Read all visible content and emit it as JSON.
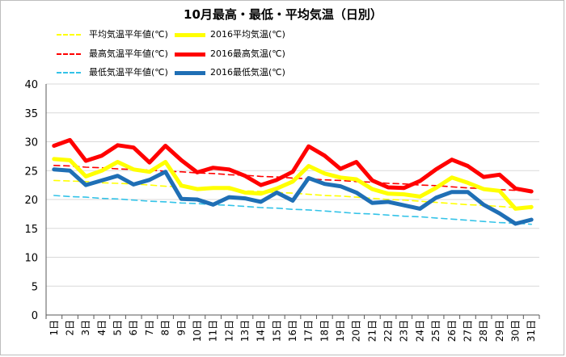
{
  "chart_data": {
    "type": "line",
    "title": "10月最高・最低・平均気温（日別）",
    "categories": [
      "1日",
      "2日",
      "3日",
      "4日",
      "5日",
      "6日",
      "7日",
      "8日",
      "9日",
      "10日",
      "11日",
      "12日",
      "13日",
      "14日",
      "15日",
      "16日",
      "17日",
      "18日",
      "19日",
      "20日",
      "21日",
      "22日",
      "23日",
      "24日",
      "25日",
      "26日",
      "27日",
      "28日",
      "29日",
      "30日",
      "31日"
    ],
    "ylim": [
      0,
      40
    ],
    "yticks": [
      0,
      5,
      10,
      15,
      20,
      25,
      30,
      35,
      40
    ],
    "grid": true,
    "legend_position": "top",
    "series": [
      {
        "name": "平均気温平年値(℃)",
        "color": "#ffff00",
        "style": "dashed",
        "values": [
          23.3,
          23.2,
          23.1,
          22.9,
          22.8,
          22.7,
          22.5,
          22.3,
          22.2,
          22.0,
          21.9,
          21.7,
          21.5,
          21.4,
          21.2,
          21.1,
          20.9,
          20.7,
          20.6,
          20.4,
          20.2,
          20.0,
          19.9,
          19.7,
          19.5,
          19.3,
          19.1,
          19.0,
          18.8,
          18.6,
          18.4
        ]
      },
      {
        "name": "2016平均気温(℃)",
        "color": "#ffff00",
        "style": "solid",
        "values": [
          27.0,
          26.8,
          24.0,
          25.0,
          26.5,
          25.2,
          24.8,
          26.5,
          22.4,
          21.8,
          22.0,
          22.0,
          21.2,
          21.0,
          21.9,
          23.1,
          25.8,
          24.5,
          23.8,
          23.5,
          21.8,
          21.0,
          20.9,
          20.5,
          22.0,
          23.8,
          22.9,
          21.8,
          21.5,
          18.4,
          18.7
        ]
      },
      {
        "name": "最高気温平年値(℃)",
        "color": "#ff0000",
        "style": "dashed",
        "values": [
          25.9,
          25.8,
          25.6,
          25.5,
          25.3,
          25.2,
          25.1,
          24.9,
          24.8,
          24.6,
          24.5,
          24.3,
          24.2,
          24.0,
          23.9,
          23.7,
          23.6,
          23.4,
          23.3,
          23.1,
          23.0,
          22.8,
          22.7,
          22.5,
          22.4,
          22.2,
          22.0,
          21.9,
          21.7,
          21.6,
          21.4
        ]
      },
      {
        "name": "2016最高気温(℃)",
        "color": "#ff0000",
        "style": "solid",
        "values": [
          29.3,
          30.3,
          26.7,
          27.6,
          29.4,
          29.0,
          26.4,
          29.3,
          26.8,
          24.7,
          25.5,
          25.2,
          24.1,
          22.5,
          23.4,
          24.8,
          29.2,
          27.6,
          25.3,
          26.5,
          23.3,
          22.1,
          22.0,
          23.2,
          25.2,
          26.9,
          25.8,
          23.9,
          24.3,
          21.9,
          21.4
        ]
      },
      {
        "name": "最低気温平年値(℃)",
        "color": "#33c3e8",
        "style": "dashed",
        "values": [
          20.7,
          20.5,
          20.4,
          20.2,
          20.1,
          19.9,
          19.7,
          19.6,
          19.4,
          19.3,
          19.1,
          19.0,
          18.8,
          18.6,
          18.5,
          18.3,
          18.2,
          18.0,
          17.8,
          17.6,
          17.5,
          17.3,
          17.1,
          17.0,
          16.8,
          16.6,
          16.4,
          16.2,
          16.0,
          15.9,
          15.7
        ]
      },
      {
        "name": "2016最低気温(℃)",
        "color": "#1f6fb5",
        "style": "solid",
        "values": [
          25.2,
          25.0,
          22.5,
          23.3,
          24.1,
          22.6,
          23.4,
          24.8,
          20.1,
          20.0,
          19.1,
          20.4,
          20.2,
          19.6,
          21.2,
          19.8,
          23.7,
          22.7,
          22.3,
          21.2,
          19.4,
          19.6,
          19.0,
          18.4,
          20.3,
          21.3,
          21.3,
          19.1,
          17.6,
          15.8,
          16.5
        ]
      }
    ]
  }
}
